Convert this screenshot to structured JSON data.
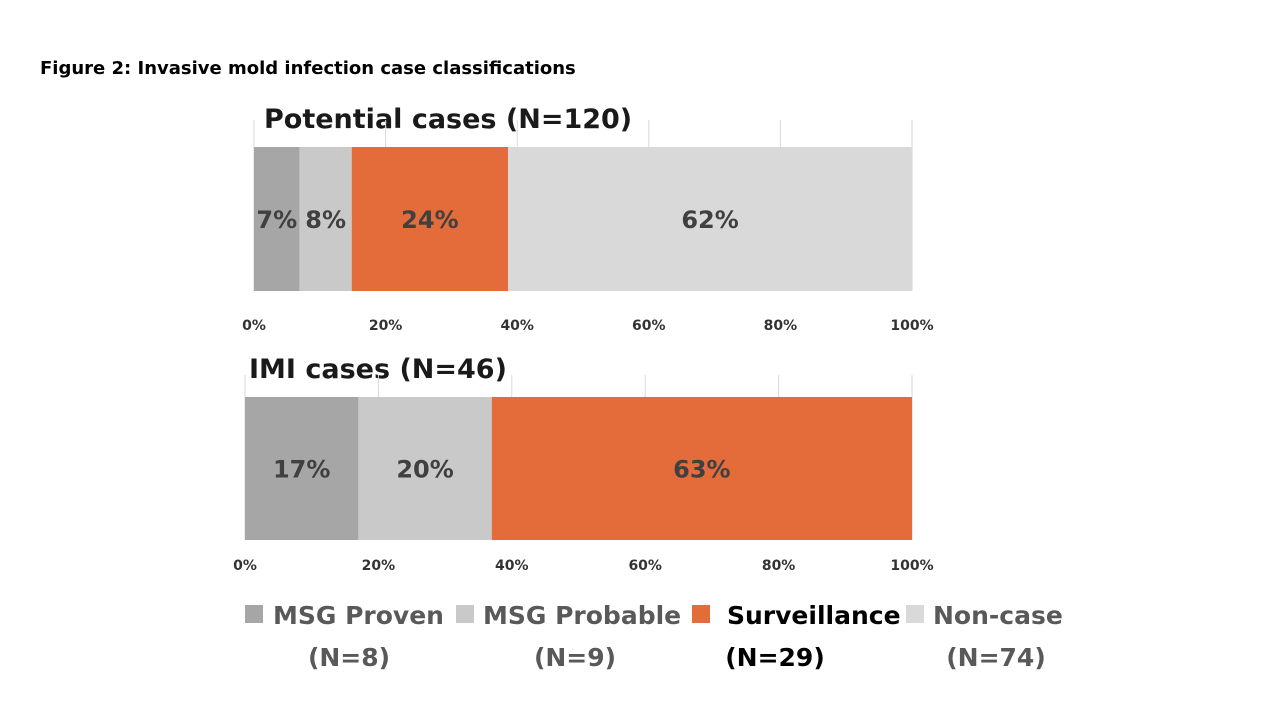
{
  "figure_caption": "Figure 2: Invasive mold infection case classifications",
  "chart_data": {
    "type": "bar",
    "orientation": "horizontal",
    "stacked": true,
    "xlim": [
      0,
      100
    ],
    "ticks": [
      "0%",
      "20%",
      "40%",
      "60%",
      "80%",
      "100%"
    ],
    "grid": true,
    "legend_position": "bottom",
    "series": [
      {
        "key": "proven",
        "name": "MSG Proven",
        "count_label": "(N=8)",
        "color": "#a6a6a6"
      },
      {
        "key": "probable",
        "name": "MSG Probable",
        "count_label": "(N=9)",
        "color": "#c9c9c9"
      },
      {
        "key": "surveillance",
        "name": "Surveillance",
        "count_label": "(N=29)",
        "color": "#e46b3a"
      },
      {
        "key": "noncase",
        "name": "Non-case",
        "count_label": "(N=74)",
        "color": "#d9d9d9"
      }
    ],
    "panels": [
      {
        "title": "Potential cases (N=120)",
        "values": [
          7,
          8,
          24,
          62
        ],
        "labels": [
          "7%",
          "8%",
          "24%",
          "62%"
        ]
      },
      {
        "title": "IMI cases (N=46)",
        "values": [
          17,
          20,
          63
        ],
        "labels": [
          "17%",
          "20%",
          "63%"
        ]
      }
    ]
  }
}
